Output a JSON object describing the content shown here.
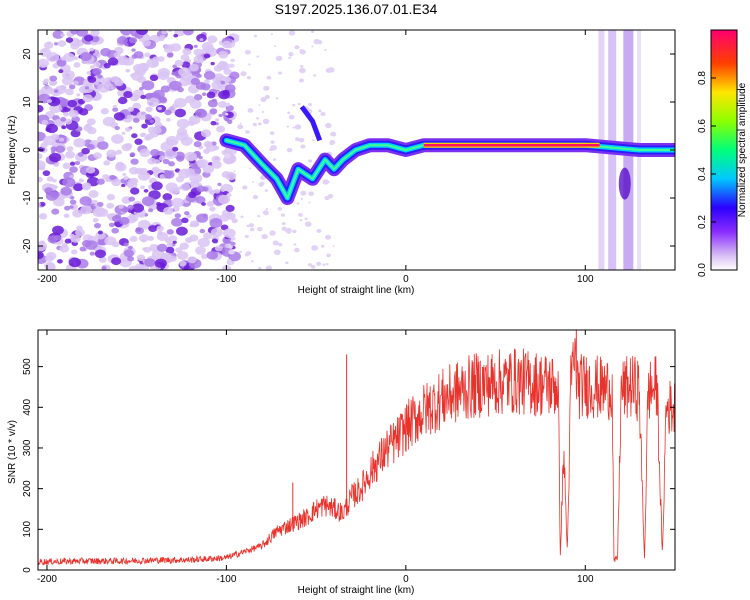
{
  "title": "S197.2025.136.07.01.E34",
  "chart_data": [
    {
      "type": "heatmap",
      "xlabel": "Height of straight line (km)",
      "ylabel": "Frequency (Hz)",
      "xlim": [
        -205,
        150
      ],
      "ylim": [
        -25,
        25
      ],
      "xticks": [
        -200,
        -100,
        0,
        100
      ],
      "yticks": [
        -20,
        -10,
        0,
        10,
        20
      ],
      "grid": false,
      "colorbar": {
        "label": "Normalized spectral amplitude",
        "range": [
          0,
          1
        ],
        "ticks": [
          0.0,
          0.2,
          0.4,
          0.6,
          0.8
        ]
      },
      "ridge": {
        "description_points": [
          [
            -100,
            2
          ],
          [
            -90,
            1
          ],
          [
            -80,
            -3
          ],
          [
            -72,
            -6
          ],
          [
            -66,
            -10
          ],
          [
            -60,
            -4
          ],
          [
            -52,
            -6
          ],
          [
            -45,
            -2
          ],
          [
            -40,
            -4
          ],
          [
            -35,
            -2
          ],
          [
            -28,
            0
          ],
          [
            -20,
            1
          ],
          [
            -10,
            1
          ],
          [
            0,
            0
          ],
          [
            10,
            1
          ],
          [
            40,
            1
          ],
          [
            60,
            1
          ],
          [
            80,
            1
          ],
          [
            90,
            1
          ],
          [
            100,
            1
          ],
          [
            130,
            0
          ],
          [
            150,
            0
          ]
        ],
        "peak_segment_x": [
          10,
          108
        ]
      }
    },
    {
      "type": "line",
      "xlabel": "Height of straight line (km)",
      "ylabel": "SNR (10 * v/v)",
      "xlim": [
        -205,
        150
      ],
      "ylim": [
        0,
        590
      ],
      "xticks": [
        -200,
        -100,
        0,
        100
      ],
      "yticks": [
        0,
        100,
        200,
        300,
        400,
        500
      ],
      "grid": false,
      "color": "#e8322c",
      "series": [
        {
          "x": [
            -205,
            -180,
            -160,
            -140,
            -120,
            -100,
            -90,
            -80,
            -72,
            -65,
            -60,
            -55,
            -50,
            -45,
            -40,
            -35,
            -30,
            -25,
            -20,
            -15,
            -10,
            -5,
            0,
            10,
            20,
            30,
            40,
            50,
            60,
            70,
            80,
            85,
            86,
            88,
            90,
            92,
            94,
            96,
            100,
            105,
            110,
            115,
            116,
            118,
            120,
            125,
            130,
            133,
            135,
            140,
            143,
            145,
            150
          ],
          "y": [
            20,
            22,
            22,
            24,
            25,
            30,
            45,
            60,
            95,
            110,
            120,
            130,
            150,
            160,
            150,
            140,
            180,
            200,
            240,
            270,
            300,
            320,
            350,
            390,
            420,
            440,
            455,
            460,
            465,
            460,
            455,
            450,
            30,
            300,
            40,
            470,
            520,
            450,
            455,
            450,
            445,
            450,
            20,
            30,
            440,
            450,
            445,
            25,
            440,
            450,
            30,
            400,
            400
          ]
        }
      ],
      "spikes": [
        {
          "x": -63,
          "y": 215
        },
        {
          "x": -33,
          "y": 530
        },
        {
          "x": 95,
          "y": 590
        }
      ]
    }
  ]
}
